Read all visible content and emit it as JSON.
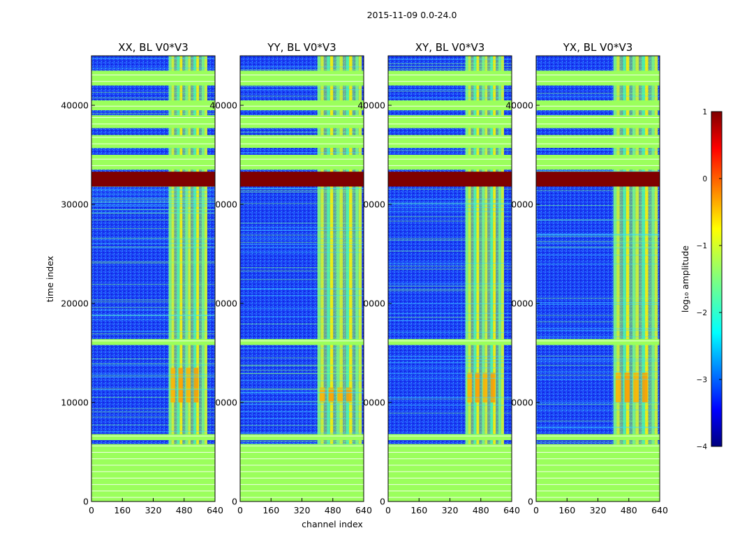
{
  "chart_data": {
    "type": "heatmap",
    "suptitle": "2015-11-09 0.0-24.0",
    "xlabel": "channel index",
    "ylabel": "time index",
    "xlim": [
      0,
      640
    ],
    "ylim": [
      0,
      45000
    ],
    "xticks": [
      "0",
      "160",
      "320",
      "480",
      "640"
    ],
    "yticks_first": [
      "0",
      "10000",
      "20000",
      "30000",
      "40000"
    ],
    "yticks_other": [
      "0",
      "0000",
      "0000",
      "0000",
      "40000"
    ],
    "xtick_values": [
      0,
      160,
      320,
      480,
      640
    ],
    "ytick_values": [
      0,
      10000,
      20000,
      30000,
      40000
    ],
    "panels": [
      {
        "title": "XX, BL V0*V3",
        "rfi_band": [
          400,
          600
        ],
        "hot_region": [
          10000,
          13500
        ]
      },
      {
        "title": "YY, BL V0*V3",
        "rfi_band": [
          400,
          630
        ],
        "hot_region": [
          10000,
          11500
        ]
      },
      {
        "title": "XY, BL V0*V3",
        "rfi_band": [
          400,
          600
        ],
        "hot_region": [
          10000,
          13000
        ]
      },
      {
        "title": "YX, BL V0*V3",
        "rfi_band": [
          400,
          630
        ],
        "hot_region": [
          10000,
          13000
        ]
      }
    ],
    "flagged_time_ranges": [
      [
        0,
        5800
      ],
      [
        6200,
        6800
      ],
      [
        15800,
        16400
      ],
      [
        33500,
        35000
      ],
      [
        35700,
        37000
      ],
      [
        37700,
        39000
      ],
      [
        39500,
        40500
      ],
      [
        42000,
        43500
      ]
    ],
    "saturated_time_range": [
      31800,
      33300
    ],
    "colorbar": {
      "label": "log₁₀ amplitude",
      "range": [
        -4,
        1
      ],
      "ticks": [
        "1",
        "0",
        "−1",
        "−2",
        "−3",
        "−4"
      ],
      "tick_values": [
        1,
        0,
        -1,
        -2,
        -3,
        -4
      ],
      "colormap": "jet"
    }
  }
}
